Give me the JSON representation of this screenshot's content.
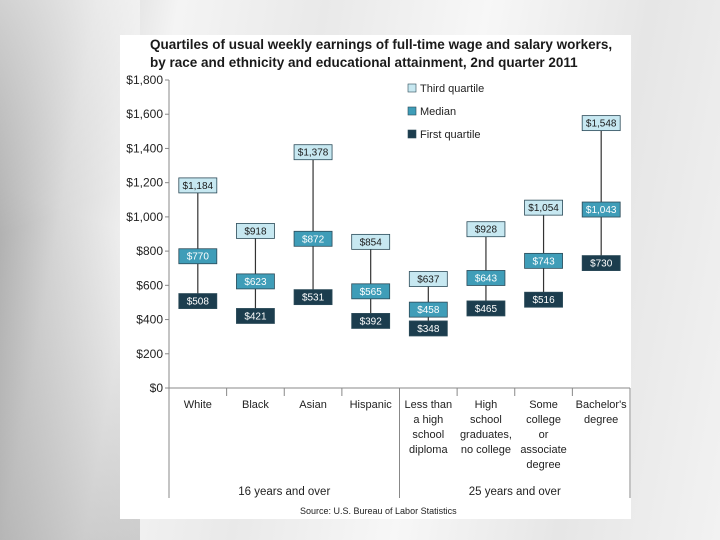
{
  "chart_data": {
    "type": "box",
    "title_lines": [
      "Quartiles of usual weekly earnings of full-time wage and salary workers,",
      "by race and ethnicity and educational attainment, 2nd quarter 2011"
    ],
    "source": "Source: U.S. Bureau of Labor Statistics",
    "ylim": [
      0,
      1800
    ],
    "yticks": [
      "$0",
      "$200",
      "$400",
      "$600",
      "$800",
      "$1,000",
      "$1,200",
      "$1,400",
      "$1,600",
      "$1,800"
    ],
    "grid": false,
    "legend_position": "top-right",
    "series": [
      {
        "name": "Third quartile",
        "color": "#c7e8f1",
        "text_color": "#1a1a1a"
      },
      {
        "name": "Median",
        "color": "#3f9db8",
        "text_color": "#ffffff"
      },
      {
        "name": "First quartile",
        "color": "#1c3d4e",
        "text_color": "#ffffff"
      }
    ],
    "categories": [
      {
        "lines": [
          "White"
        ],
        "q1": 508,
        "median": 770,
        "q3": 1184,
        "q1_label": "$508",
        "median_label": "$770",
        "q3_label": "$1,184"
      },
      {
        "lines": [
          "Black"
        ],
        "q1": 421,
        "median": 623,
        "q3": 918,
        "q1_label": "$421",
        "median_label": "$623",
        "q3_label": "$918"
      },
      {
        "lines": [
          "Asian"
        ],
        "q1": 531,
        "median": 872,
        "q3": 1378,
        "q1_label": "$531",
        "median_label": "$872",
        "q3_label": "$1,378"
      },
      {
        "lines": [
          "Hispanic"
        ],
        "q1": 392,
        "median": 565,
        "q3": 854,
        "q1_label": "$392",
        "median_label": "$565",
        "q3_label": "$854"
      },
      {
        "lines": [
          "Less than",
          "a high",
          "school",
          "diploma"
        ],
        "q1": 348,
        "median": 458,
        "q3": 637,
        "q1_label": "$348",
        "median_label": "$458",
        "q3_label": "$637"
      },
      {
        "lines": [
          "High",
          "school",
          "graduates,",
          "no college"
        ],
        "q1": 465,
        "median": 643,
        "q3": 928,
        "q1_label": "$465",
        "median_label": "$643",
        "q3_label": "$928"
      },
      {
        "lines": [
          "Some",
          "college",
          "or",
          "associate",
          "degree"
        ],
        "q1": 516,
        "median": 743,
        "q3": 1054,
        "q1_label": "$516",
        "median_label": "$743",
        "q3_label": "$1,054"
      },
      {
        "lines": [
          "Bachelor's",
          "degree"
        ],
        "q1": 730,
        "median": 1043,
        "q3": 1548,
        "q1_label": "$730",
        "median_label": "$1,043",
        "q3_label": "$1,548"
      }
    ],
    "groups": [
      {
        "label": "16 years and over",
        "start": 0,
        "end": 3
      },
      {
        "label": "25 years and over",
        "start": 4,
        "end": 7
      }
    ]
  }
}
